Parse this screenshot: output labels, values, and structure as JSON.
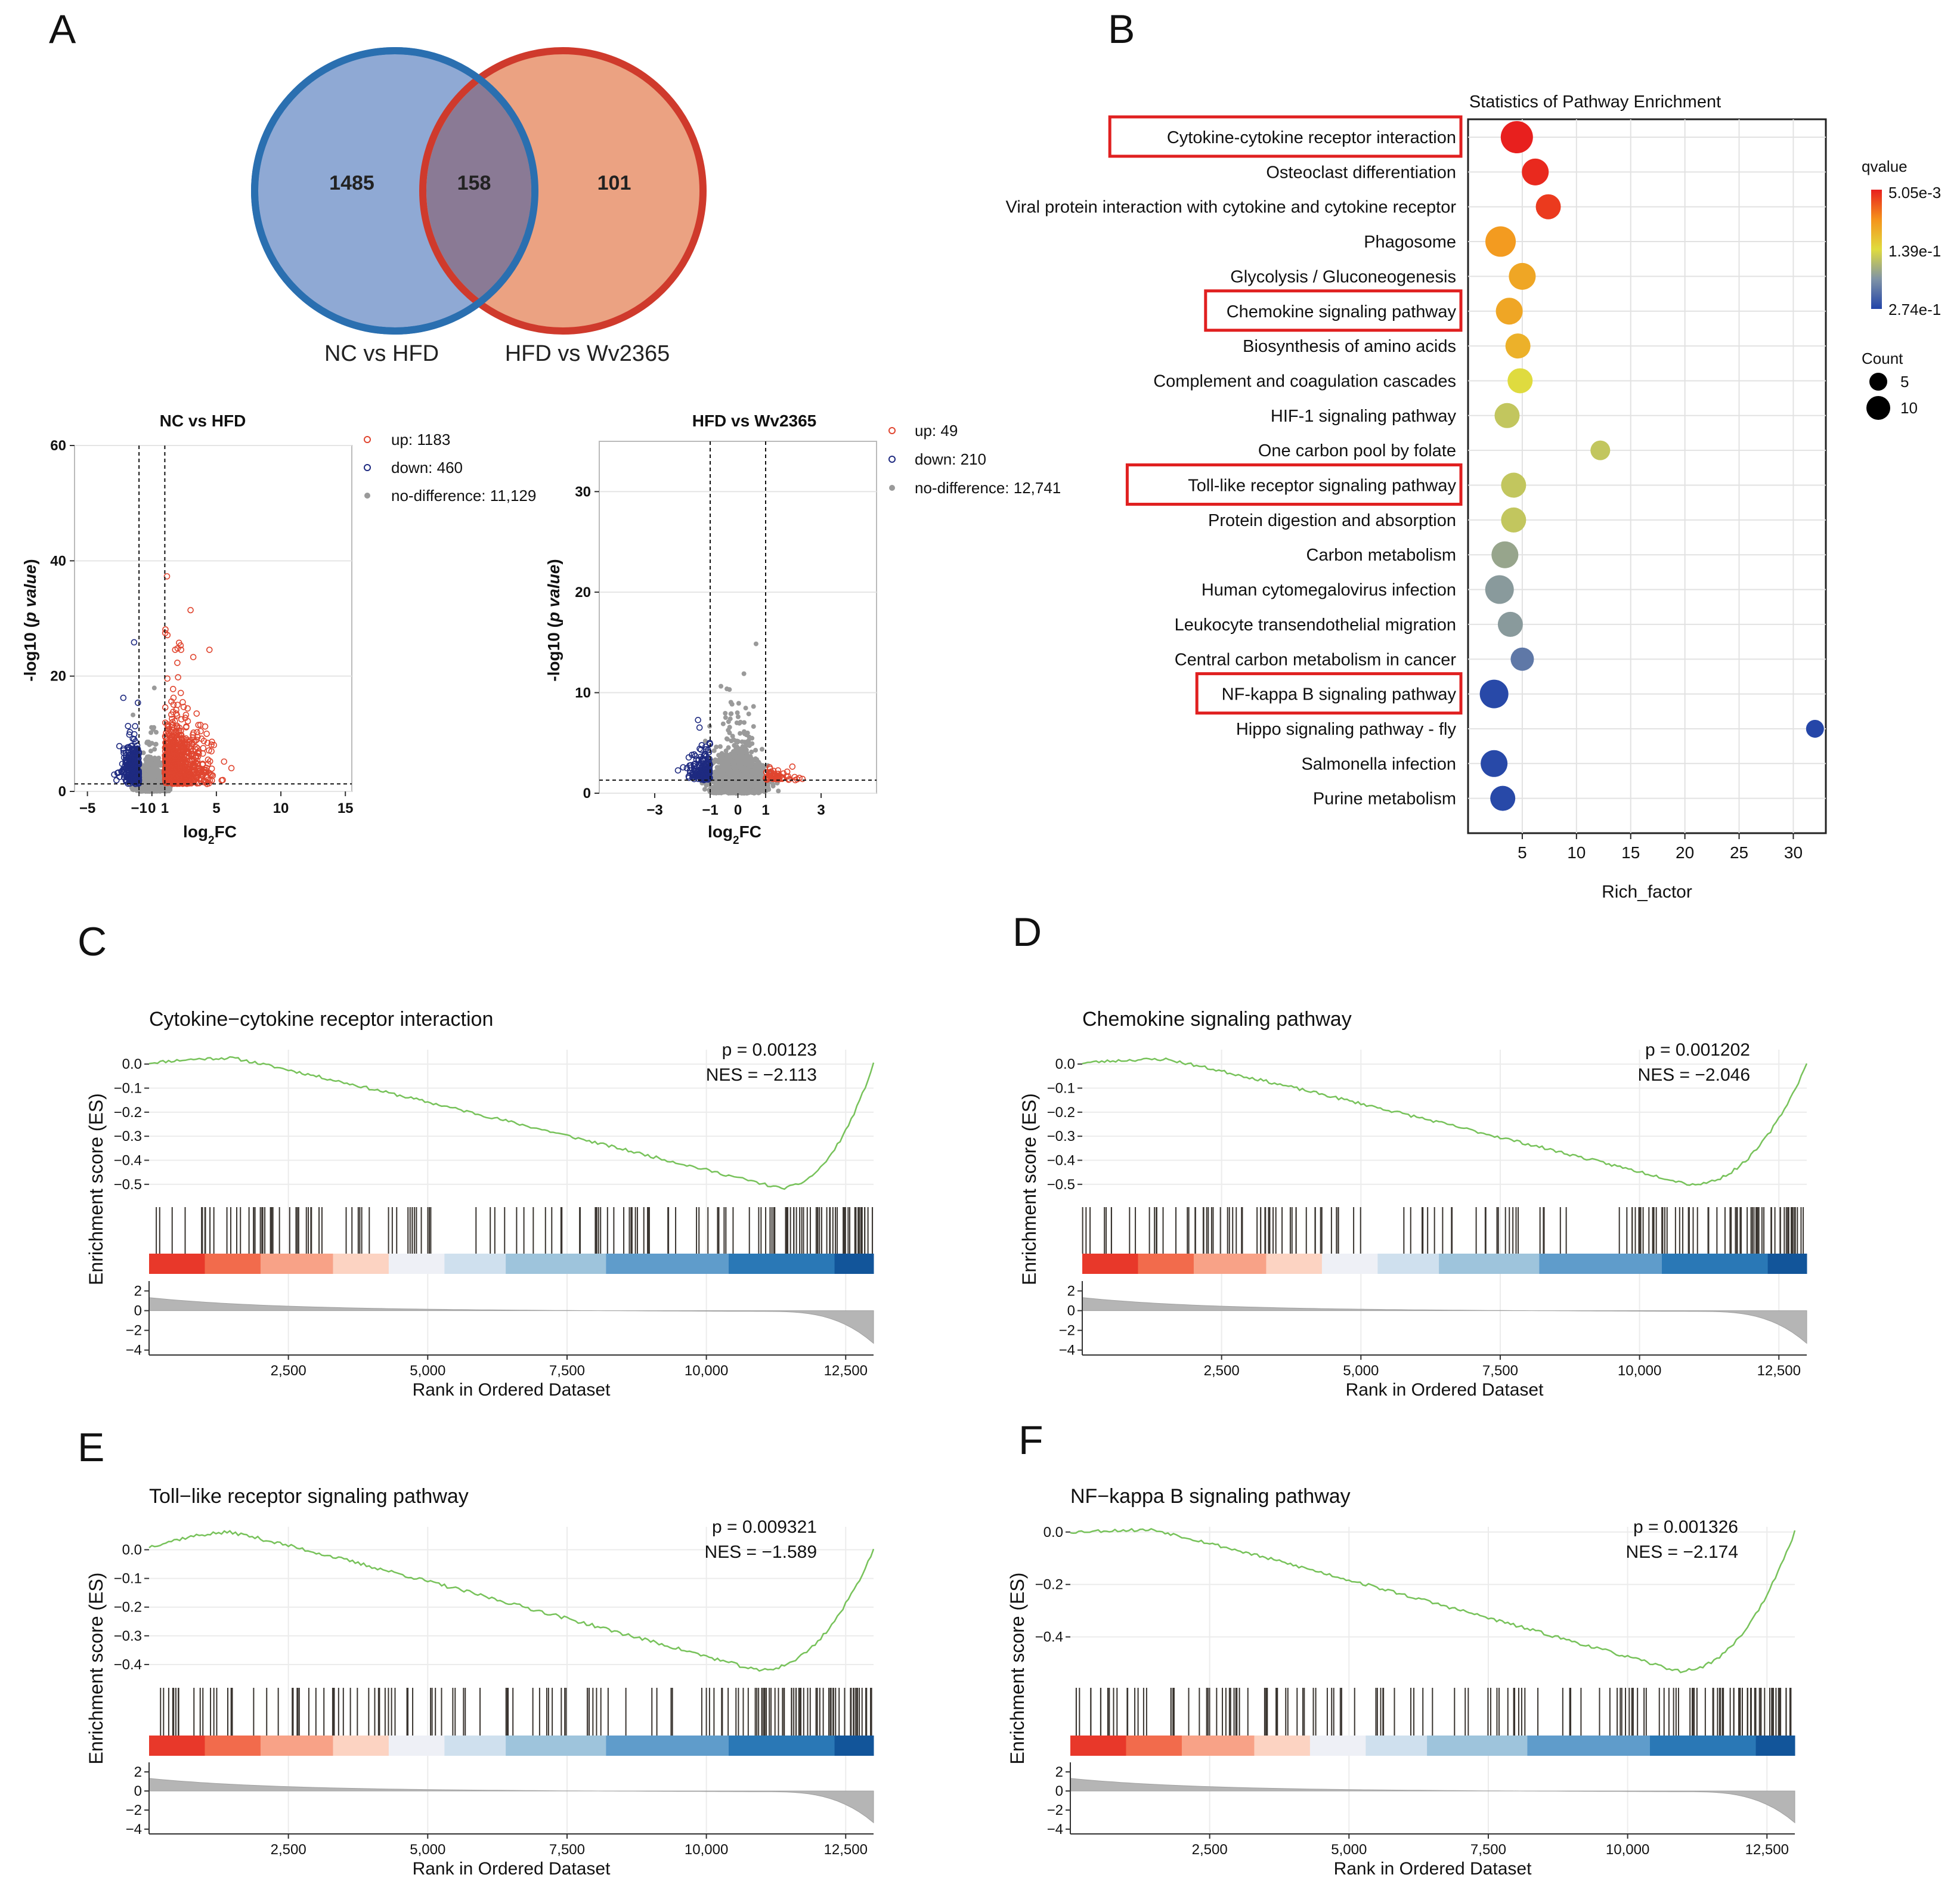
{
  "panel_letters": {
    "a": "A",
    "b": "B",
    "c": "C",
    "d": "D",
    "e": "E",
    "f": "F"
  },
  "colors": {
    "venn_left": "#8fa9d4",
    "venn_left_stroke": "#2a6fb0",
    "venn_right": "#eba282",
    "venn_right_stroke": "#cf3a2c",
    "venn_overlap": "#8a7a95",
    "highlight_box": "#e02020",
    "up": "#e0452f",
    "down": "#1e2a80",
    "nodiff": "#9a9a9a",
    "es_line": "#77c25a"
  },
  "chart_data": [
    {
      "id": "venn",
      "type": "venn",
      "sets": [
        {
          "name": "NC vs HFD",
          "only": 1485
        },
        {
          "name": "HFD vs Wv2365",
          "only": 101
        }
      ],
      "overlap": 158
    },
    {
      "id": "volcano1",
      "type": "scatter",
      "title": "NC vs HFD",
      "xlabel_main": "log",
      "xlabel_sub": "2",
      "xlabel_tail": "FC",
      "ylabel": "-log10 (",
      "ylabel_italic": "p value",
      "ylabel_close": ")",
      "xlim": [
        -6,
        15.5
      ],
      "ylim": [
        0,
        60
      ],
      "xticks": [
        -5,
        -1,
        0,
        1,
        5,
        10,
        15
      ],
      "yticks": [
        0,
        20,
        40,
        60
      ],
      "thresholds": {
        "x": [
          -1,
          1
        ],
        "y": 1.3
      },
      "legend": [
        {
          "label": "up: 1183",
          "kind": "up"
        },
        {
          "label": "down: 460",
          "kind": "down"
        },
        {
          "label": "no-difference: 11,129",
          "kind": "nodiff"
        }
      ]
    },
    {
      "id": "volcano2",
      "type": "scatter",
      "title": "HFD vs Wv2365",
      "xlabel_main": "log",
      "xlabel_sub": "2",
      "xlabel_tail": "FC",
      "ylabel": "-log10 (",
      "ylabel_italic": "p value",
      "ylabel_close": ")",
      "xlim": [
        -5,
        5
      ],
      "ylim": [
        0,
        35
      ],
      "xticks": [
        -3,
        -1,
        0,
        1,
        3
      ],
      "yticks": [
        0,
        10,
        20,
        30
      ],
      "thresholds": {
        "x": [
          -1,
          1
        ],
        "y": 1.3
      },
      "legend": [
        {
          "label": "up: 49",
          "kind": "up"
        },
        {
          "label": "down: 210",
          "kind": "down"
        },
        {
          "label": "no-difference: 12,741",
          "kind": "nodiff"
        }
      ]
    },
    {
      "id": "kegg",
      "type": "scatter",
      "title": "Statistics of Pathway Enrichment",
      "xlabel": "Rich_factor",
      "xlim": [
        0,
        33
      ],
      "xticks": [
        5,
        10,
        15,
        20,
        25,
        30
      ],
      "legend_color_title": "qvalue",
      "legend_color_labels": [
        "5.05e-3",
        "1.39e-1",
        "2.74e-1"
      ],
      "legend_size_title": "Count",
      "legend_size_labels": [
        "5",
        "10"
      ],
      "pathways": [
        {
          "name": "Cytokine-cytokine receptor interaction",
          "rich": 4.5,
          "q": 0.005,
          "count": 12,
          "boxed": true
        },
        {
          "name": "Osteoclast differentiation",
          "rich": 6.2,
          "q": 0.01,
          "count": 9,
          "boxed": false
        },
        {
          "name": "Viral protein interaction with cytokine and cytokine receptor",
          "rich": 7.4,
          "q": 0.02,
          "count": 8,
          "boxed": false
        },
        {
          "name": "Phagosome",
          "rich": 3.0,
          "q": 0.08,
          "count": 11,
          "boxed": false
        },
        {
          "name": "Glycolysis / Gluconeogenesis",
          "rich": 5.0,
          "q": 0.09,
          "count": 9,
          "boxed": false
        },
        {
          "name": "Chemokine signaling pathway",
          "rich": 3.8,
          "q": 0.09,
          "count": 9,
          "boxed": true
        },
        {
          "name": "Biosynthesis of amino acids",
          "rich": 4.6,
          "q": 0.1,
          "count": 8,
          "boxed": false
        },
        {
          "name": "Complement and coagulation cascades",
          "rich": 4.8,
          "q": 0.14,
          "count": 8,
          "boxed": false
        },
        {
          "name": "HIF-1 signaling pathway",
          "rich": 3.6,
          "q": 0.16,
          "count": 8,
          "boxed": false
        },
        {
          "name": "One carbon pool by folate",
          "rich": 12.2,
          "q": 0.16,
          "count": 5,
          "boxed": false
        },
        {
          "name": "Toll-like receptor signaling pathway",
          "rich": 4.2,
          "q": 0.16,
          "count": 8,
          "boxed": true
        },
        {
          "name": "Protein digestion and absorption",
          "rich": 4.2,
          "q": 0.16,
          "count": 8,
          "boxed": false
        },
        {
          "name": "Carbon metabolism",
          "rich": 3.4,
          "q": 0.19,
          "count": 9,
          "boxed": false
        },
        {
          "name": "Human cytomegalovirus infection",
          "rich": 2.9,
          "q": 0.2,
          "count": 10,
          "boxed": false
        },
        {
          "name": "Leukocyte transendothelial migration",
          "rich": 3.9,
          "q": 0.2,
          "count": 8,
          "boxed": false
        },
        {
          "name": "Central carbon metabolism in cancer",
          "rich": 5.0,
          "q": 0.23,
          "count": 7,
          "boxed": false
        },
        {
          "name": "NF-kappa B signaling pathway",
          "rich": 2.4,
          "q": 0.27,
          "count": 10,
          "boxed": true
        },
        {
          "name": "Hippo signaling pathway - fly",
          "rich": 32.0,
          "q": 0.272,
          "count": 4,
          "boxed": false
        },
        {
          "name": "Salmonella infection",
          "rich": 2.4,
          "q": 0.27,
          "count": 9,
          "boxed": false
        },
        {
          "name": "Purine metabolism",
          "rich": 3.2,
          "q": 0.27,
          "count": 8,
          "boxed": false
        }
      ]
    },
    {
      "id": "gsea_c",
      "type": "line",
      "title": "Cytokine−cytokine receptor interaction",
      "p_text": "p = 0.00123",
      "nes_text": "NES = −2.113",
      "ylabel": "Enrichment score (ES)",
      "xlabel": "Rank in Ordered Dataset",
      "xlim": [
        0,
        13000
      ],
      "ylim": [
        -0.56,
        0.06
      ],
      "yticks": [
        0.0,
        -0.1,
        -0.2,
        -0.3,
        -0.4,
        -0.5
      ],
      "ytick_labels": [
        "0.0",
        "−0.1",
        "−0.2",
        "−0.3",
        "−0.4",
        "−0.5"
      ],
      "min_es": -0.515,
      "min_rank": 11300,
      "start_es": 0.005,
      "bump": 0.02,
      "xticks": [
        2500,
        5000,
        7500,
        10000,
        12500
      ],
      "xtick_labels": [
        "2,500",
        "5,000",
        "7,500",
        "10,000",
        "12,500"
      ],
      "metric_ticks": [
        "2",
        "0",
        "−2",
        "−4"
      ],
      "seed": 11
    },
    {
      "id": "gsea_d",
      "type": "line",
      "title": "Chemokine signaling pathway",
      "p_text": "p = 0.001202",
      "nes_text": "NES = −2.046",
      "ylabel": "Enrichment score (ES)",
      "xlabel": "Rank in Ordered Dataset",
      "xlim": [
        0,
        13000
      ],
      "ylim": [
        -0.56,
        0.06
      ],
      "yticks": [
        0.0,
        -0.1,
        -0.2,
        -0.3,
        -0.4,
        -0.5
      ],
      "ytick_labels": [
        "0.0",
        "−0.1",
        "−0.2",
        "−0.3",
        "−0.4",
        "−0.5"
      ],
      "min_es": -0.5,
      "min_rank": 10900,
      "start_es": 0.005,
      "bump": 0.015,
      "xticks": [
        2500,
        5000,
        7500,
        10000,
        12500
      ],
      "xtick_labels": [
        "2,500",
        "5,000",
        "7,500",
        "10,000",
        "12,500"
      ],
      "metric_ticks": [
        "2",
        "0",
        "−2",
        "−4"
      ],
      "seed": 23
    },
    {
      "id": "gsea_e",
      "type": "line",
      "title": "Toll−like receptor signaling pathway",
      "p_text": "p = 0.009321",
      "nes_text": "NES = −1.589",
      "ylabel": "Enrichment score (ES)",
      "xlabel": "Rank in Ordered Dataset",
      "xlim": [
        0,
        13000
      ],
      "ylim": [
        -0.45,
        0.08
      ],
      "yticks": [
        0.0,
        -0.1,
        -0.2,
        -0.3,
        -0.4
      ],
      "ytick_labels": [
        "0.0",
        "−0.1",
        "−0.2",
        "−0.3",
        "−0.4"
      ],
      "min_es": -0.42,
      "min_rank": 10900,
      "start_es": 0.01,
      "bump": 0.05,
      "xticks": [
        2500,
        5000,
        7500,
        10000,
        12500
      ],
      "xtick_labels": [
        "2,500",
        "5,000",
        "7,500",
        "10,000",
        "12,500"
      ],
      "metric_ticks": [
        "2",
        "0",
        "−2",
        "−4"
      ],
      "seed": 37
    },
    {
      "id": "gsea_f",
      "type": "line",
      "title": "NF−kappa B signaling pathway",
      "p_text": "p = 0.001326",
      "nes_text": "NES = −2.174",
      "ylabel": "Enrichment score (ES)",
      "xlabel": "Rank in Ordered Dataset",
      "xlim": [
        0,
        13000
      ],
      "ylim": [
        -0.56,
        0.02
      ],
      "yticks": [
        0.0,
        -0.2,
        -0.4
      ],
      "ytick_labels": [
        "0.0",
        "−0.2",
        "−0.4"
      ],
      "min_es": -0.53,
      "min_rank": 10900,
      "start_es": 0.0,
      "bump": 0.008,
      "xticks": [
        2500,
        5000,
        7500,
        10000,
        12500
      ],
      "xtick_labels": [
        "2,500",
        "5,000",
        "7,500",
        "10,000",
        "12,500"
      ],
      "metric_ticks": [
        "2",
        "0",
        "−2",
        "−4"
      ],
      "seed": 53
    }
  ]
}
